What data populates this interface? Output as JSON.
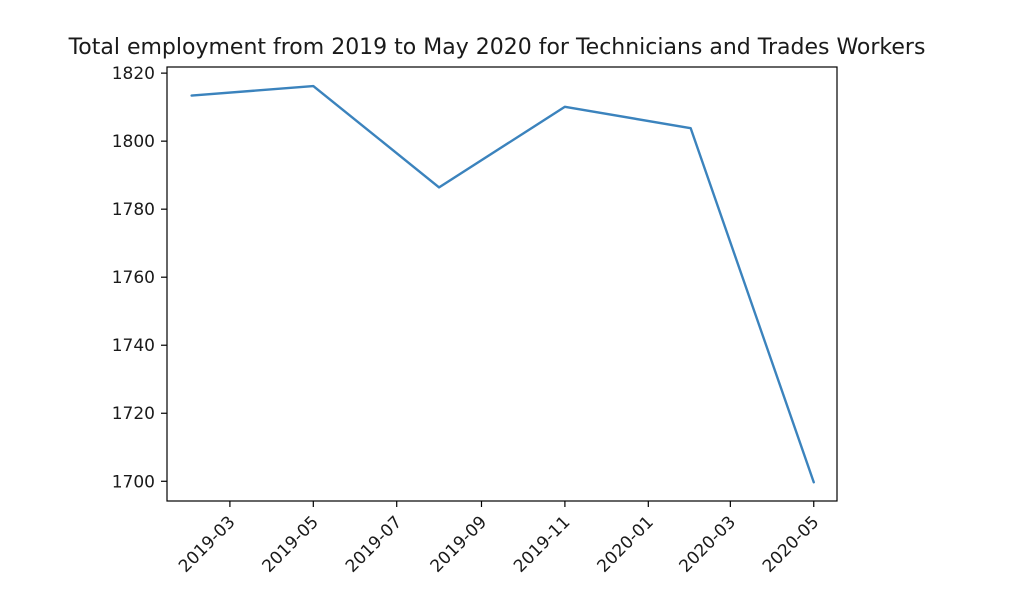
{
  "chart_data": {
    "type": "line",
    "title": "Total employment from 2019 to May 2020 for Technicians and Trades Workers",
    "xlabel": "",
    "ylabel": "",
    "x": [
      "2019-02",
      "2019-05",
      "2019-08",
      "2019-11",
      "2020-02",
      "2020-05"
    ],
    "series": [
      {
        "values": [
          1813.4,
          1816.2,
          1786.4,
          1810.1,
          1803.8,
          1699.7
        ]
      }
    ],
    "x_ticks": [
      "2019-03",
      "2019-05",
      "2019-07",
      "2019-09",
      "2019-11",
      "2020-01",
      "2020-03",
      "2020-05"
    ],
    "y_ticks": [
      1700,
      1720,
      1740,
      1760,
      1780,
      1800,
      1820
    ],
    "xlim": [
      "2019-01-14",
      "2020-05-18"
    ],
    "ylim": [
      1694.2,
      1821.8
    ],
    "grid": false,
    "line_color": "#3b83bd"
  }
}
